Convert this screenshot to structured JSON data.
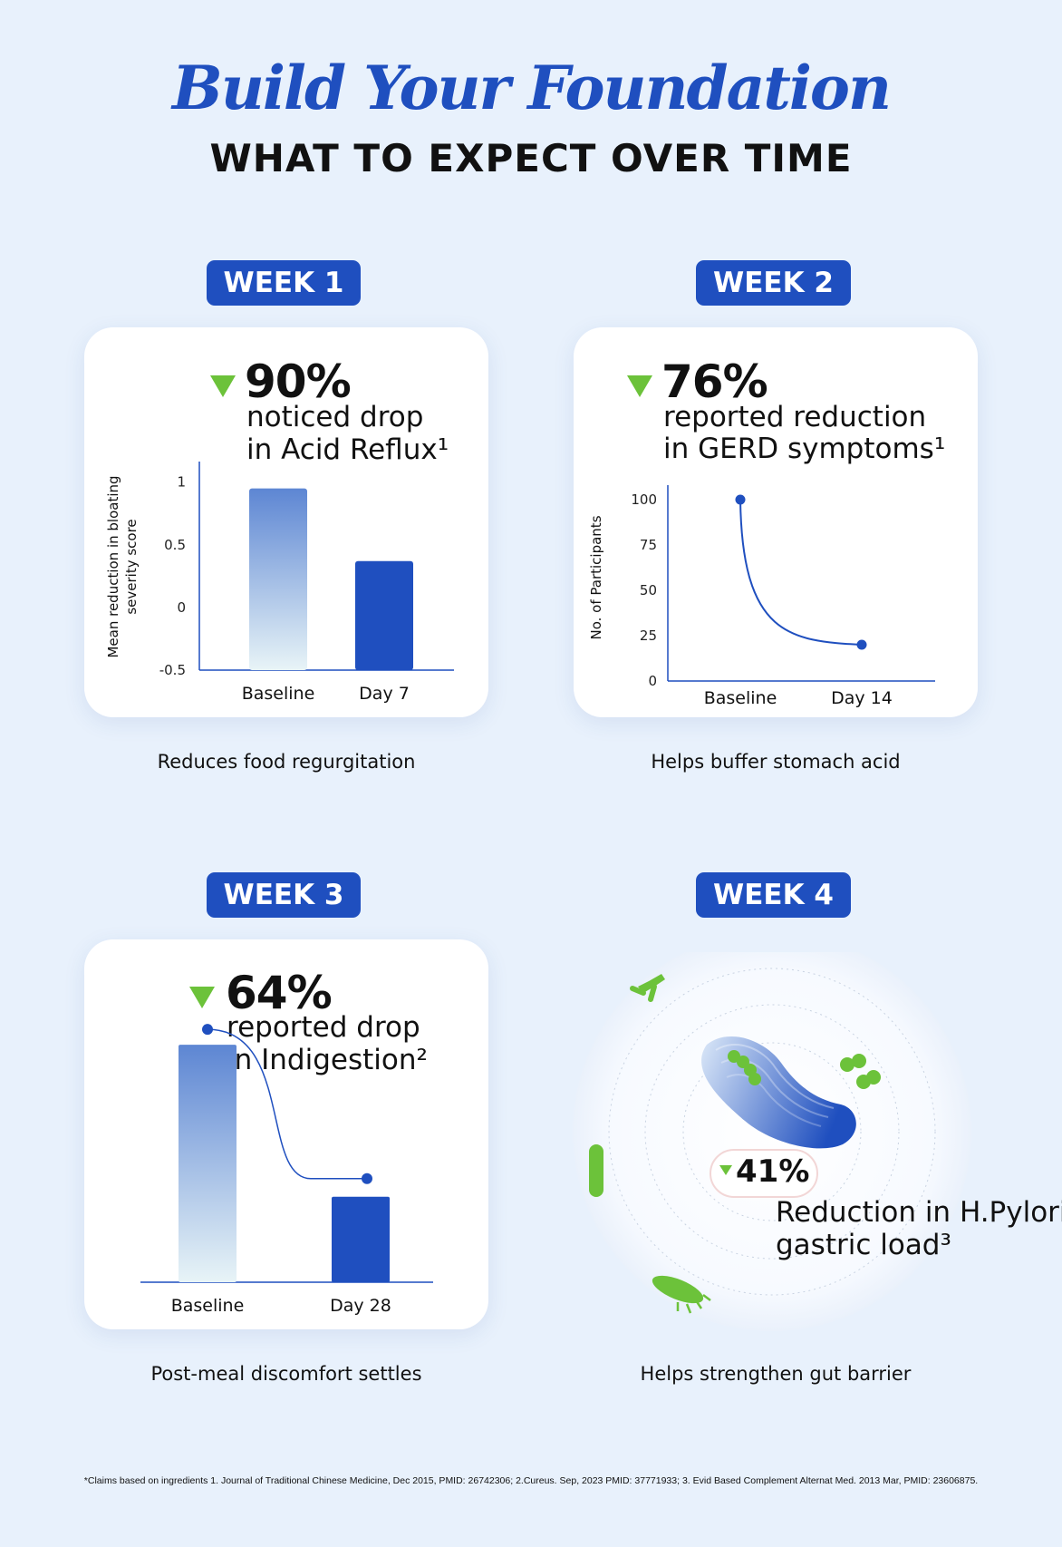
{
  "header": {
    "title": "Build Your Foundation",
    "subtitle": "WHAT TO EXPECT OVER TIME"
  },
  "colors": {
    "accent": "#1f4fbf",
    "green": "#6cc23a",
    "background": "#e8f1fc"
  },
  "weeks": [
    {
      "badge": "WEEK 1",
      "percent": "90%",
      "desc_line1": "noticed drop",
      "desc_line2": "in Acid Reflux¹",
      "caption": "Reduces food regurgitation"
    },
    {
      "badge": "WEEK 2",
      "percent": "76%",
      "desc_line1": "reported reduction",
      "desc_line2": "in GERD symptoms¹",
      "caption": "Helps buffer stomach acid"
    },
    {
      "badge": "WEEK 3",
      "percent": "64%",
      "desc_line1": "reported drop",
      "desc_line2": "in Indigestion²",
      "caption": "Post-meal discomfort settles"
    },
    {
      "badge": "WEEK 4",
      "percent": "41%",
      "desc_line1": "Reduction in H.Pylori",
      "desc_line2": "gastric load³",
      "caption": "Helps strengthen gut barrier"
    }
  ],
  "chart_data": [
    {
      "type": "bar",
      "categories": [
        "Baseline",
        "Day 7"
      ],
      "values": [
        0.95,
        0.37
      ],
      "ylabel_line1": "Mean reduction in bloating",
      "ylabel_line2": "severity score",
      "yticks": [
        "1",
        "0.5",
        "0",
        "-0.5"
      ],
      "ylim": [
        -0.5,
        1.15
      ]
    },
    {
      "type": "line",
      "categories": [
        "Baseline",
        "Day 14"
      ],
      "values": [
        100,
        20
      ],
      "ylabel": "No. of Participants",
      "yticks": [
        "100",
        "75",
        "50",
        "25",
        "0"
      ],
      "ylim": [
        0,
        100
      ]
    },
    {
      "type": "bar",
      "categories": [
        "Baseline",
        "Day 28"
      ],
      "values": [
        100,
        36
      ],
      "ylim": [
        0,
        110
      ]
    }
  ],
  "footnote": "*Claims based on ingredients 1. Journal of Traditional Chinese Medicine, Dec 2015, PMID: 26742306; 2.Cureus. Sep, 2023 PMID: 37771933; 3. Evid Based Complement Alternat Med. 2013 Mar, PMID: 23606875."
}
